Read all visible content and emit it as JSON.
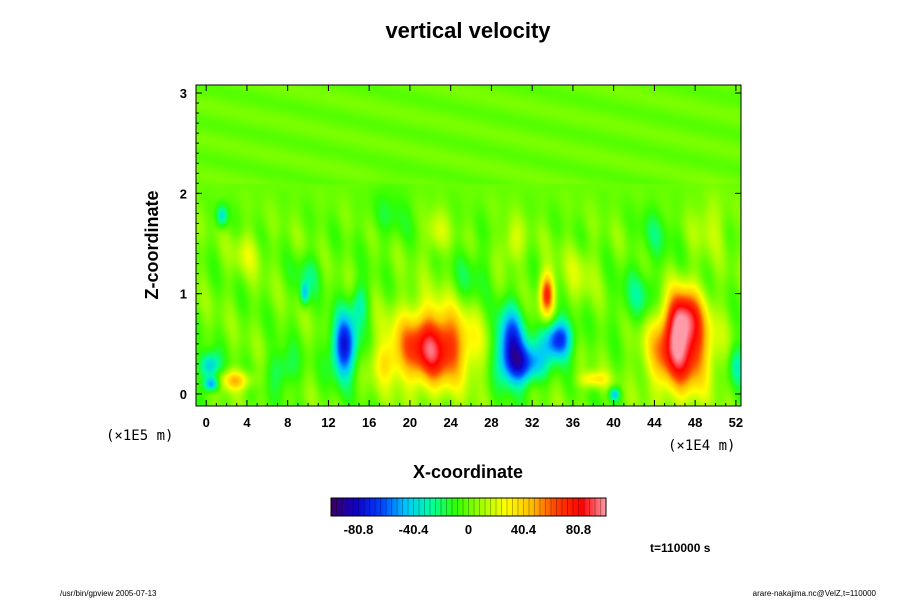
{
  "chart_data": {
    "type": "heatmap",
    "title": "vertical velocity",
    "xlabel": "X-coordinate",
    "ylabel": "Z-coordinate",
    "x_ticks": [
      "0",
      "4",
      "8",
      "12",
      "16",
      "20",
      "24",
      "28",
      "32",
      "36",
      "40",
      "44",
      "48",
      "52"
    ],
    "y_ticks": [
      "0",
      "1",
      "2",
      "3"
    ],
    "x_scale_label": "(×1E4 m)",
    "y_scale_label": "(×1E5 m)",
    "xlim": [
      -1,
      52.5
    ],
    "ylim": [
      -0.12,
      3.08
    ],
    "colorbar": {
      "ticks": [
        "-80.8",
        "-40.4",
        "0",
        "40.4",
        "80.8"
      ],
      "tick_values": [
        -80.8,
        -40.4,
        0,
        40.4,
        80.8
      ],
      "range": [
        -101,
        101
      ],
      "colormap": [
        "#3b0060",
        "#1000c8",
        "#0040ff",
        "#00c8ff",
        "#00ffa0",
        "#30ff00",
        "#a0ff00",
        "#ffff00",
        "#ffc000",
        "#ff4000",
        "#ff0000",
        "#ff9aa8"
      ]
    },
    "background_value": 0,
    "features": [
      {
        "x": 22.2,
        "z": 0.47,
        "value": 90,
        "sx": 2.6,
        "sz": 0.27
      },
      {
        "x": 46.5,
        "z": 0.45,
        "value": 92,
        "sx": 2.0,
        "sz": 0.3
      },
      {
        "x": 46.8,
        "z": 0.8,
        "value": 55,
        "sx": 1.2,
        "sz": 0.2
      },
      {
        "x": 13.5,
        "z": 0.48,
        "value": -78,
        "sx": 0.9,
        "sz": 0.22
      },
      {
        "x": 29.8,
        "z": 0.5,
        "value": -72,
        "sx": 1.0,
        "sz": 0.25
      },
      {
        "x": 31.3,
        "z": 0.3,
        "value": -60,
        "sx": 1.3,
        "sz": 0.14
      },
      {
        "x": 34.5,
        "z": 0.55,
        "value": -75,
        "sx": 1.0,
        "sz": 0.14
      },
      {
        "x": 33.4,
        "z": 1.0,
        "value": 72,
        "sx": 0.5,
        "sz": 0.15
      },
      {
        "x": 1.5,
        "z": 1.78,
        "value": -38,
        "sx": 0.4,
        "sz": 0.08
      },
      {
        "x": 0.3,
        "z": 0.28,
        "value": -48,
        "sx": 0.7,
        "sz": 0.1
      },
      {
        "x": 2.8,
        "z": 0.14,
        "value": 45,
        "sx": 1.1,
        "sz": 0.07
      },
      {
        "x": 0.5,
        "z": 0.1,
        "value": -55,
        "sx": 0.5,
        "sz": 0.05
      },
      {
        "x": 9.6,
        "z": 1.0,
        "value": -40,
        "sx": 0.3,
        "sz": 0.08
      },
      {
        "x": 15.0,
        "z": 0.9,
        "value": -30,
        "sx": 0.6,
        "sz": 0.15
      },
      {
        "x": 7.5,
        "z": 0.25,
        "value": -25,
        "sx": 1.0,
        "sz": 0.15
      },
      {
        "x": 17.5,
        "z": 0.3,
        "value": 22,
        "sx": 1.0,
        "sz": 0.15
      },
      {
        "x": 38.0,
        "z": 0.15,
        "value": 35,
        "sx": 1.0,
        "sz": 0.06
      },
      {
        "x": 40.0,
        "z": 0.0,
        "value": -45,
        "sx": 0.4,
        "sz": 0.05
      },
      {
        "x": 42.5,
        "z": 0.95,
        "value": -22,
        "sx": 1.5,
        "sz": 0.2
      },
      {
        "x": 52.0,
        "z": 0.3,
        "value": -30,
        "sx": 0.6,
        "sz": 0.15
      },
      {
        "x": 22.5,
        "z": 1.6,
        "value": 20,
        "sx": 0.8,
        "sz": 0.15
      },
      {
        "x": 30.0,
        "z": 1.5,
        "value": 22,
        "sx": 0.8,
        "sz": 0.15
      },
      {
        "x": 4.0,
        "z": 1.4,
        "value": 18,
        "sx": 1.0,
        "sz": 0.15
      },
      {
        "x": 10.0,
        "z": 1.2,
        "value": -18,
        "sx": 1.0,
        "sz": 0.15
      },
      {
        "x": 26.0,
        "z": 1.2,
        "value": -15,
        "sx": 1.2,
        "sz": 0.2
      },
      {
        "x": 36.5,
        "z": 1.2,
        "value": 15,
        "sx": 1.2,
        "sz": 0.2
      },
      {
        "x": 44.0,
        "z": 1.6,
        "value": -15,
        "sx": 1.2,
        "sz": 0.2
      },
      {
        "x": 49.5,
        "z": 1.7,
        "value": 15,
        "sx": 1.2,
        "sz": 0.2
      },
      {
        "x": 18.0,
        "z": 1.8,
        "value": -12,
        "sx": 1.5,
        "sz": 0.2
      }
    ]
  },
  "time_label": "t=110000 s",
  "footer": {
    "left": "/usr/bin/gpview 2005-07-13",
    "right": "arare-nakajima.nc@VelZ,t=110000"
  }
}
